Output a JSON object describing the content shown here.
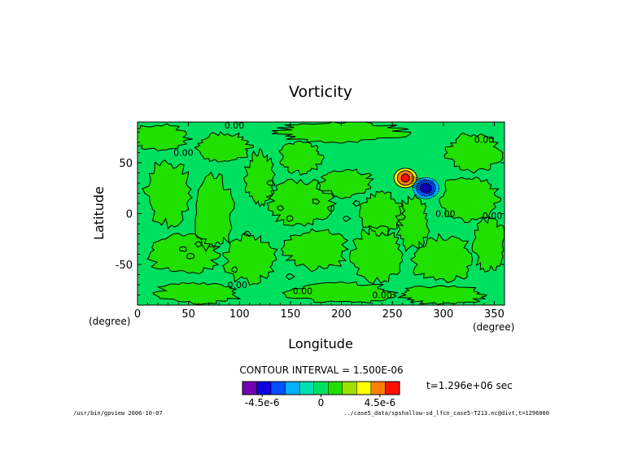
{
  "chart_data": {
    "type": "heatmap",
    "title": "Vorticity",
    "xlabel": "Longitude",
    "ylabel": "Latitude",
    "x_unit": "(degree)",
    "y_unit": "(degree)",
    "xlim": [
      0,
      360
    ],
    "ylim": [
      -90,
      90
    ],
    "xticks": [
      0,
      50,
      100,
      150,
      200,
      250,
      300,
      350
    ],
    "yticks": [
      -50,
      0,
      50
    ],
    "contour_interval_label": "CONTOUR INTERVAL = 1.500E-06",
    "time_label": "t=1.296e+06 sec",
    "colorbar": {
      "colors": [
        "#7000b0",
        "#1000e0",
        "#0050ff",
        "#00b0ff",
        "#00e0b0",
        "#00e060",
        "#20e000",
        "#a0e000",
        "#ffff00",
        "#ff8000",
        "#ff1000"
      ],
      "tick_labels": [
        "-4.5e-6",
        "0",
        "4.5e-6"
      ],
      "tick_values": [
        -4.5e-06,
        0,
        4.5e-06
      ]
    },
    "contour_labels": [
      {
        "text": "0.00",
        "lon": 95,
        "lat": 87
      },
      {
        "text": "0.00",
        "lon": 340,
        "lat": 73
      },
      {
        "text": "0.00",
        "lon": 45,
        "lat": 60
      },
      {
        "text": "0.00",
        "lon": 302,
        "lat": 0
      },
      {
        "text": "0.00",
        "lon": 348,
        "lat": -2
      },
      {
        "text": "0.00",
        "lon": 98,
        "lat": -70
      },
      {
        "text": "0.00",
        "lon": 162,
        "lat": -76
      },
      {
        "text": "0.00",
        "lon": 240,
        "lat": -80
      }
    ],
    "vortex_dipole": {
      "positive_center": {
        "lon": 262,
        "lat": 35
      },
      "negative_center": {
        "lon": 283,
        "lat": 25
      }
    }
  },
  "footer": {
    "left": "/usr/bin/gpview  2006-10-07",
    "right": "../case5_data/spshallow-sd_lfcn_case5-T213.nc@divt,t=1296000"
  }
}
